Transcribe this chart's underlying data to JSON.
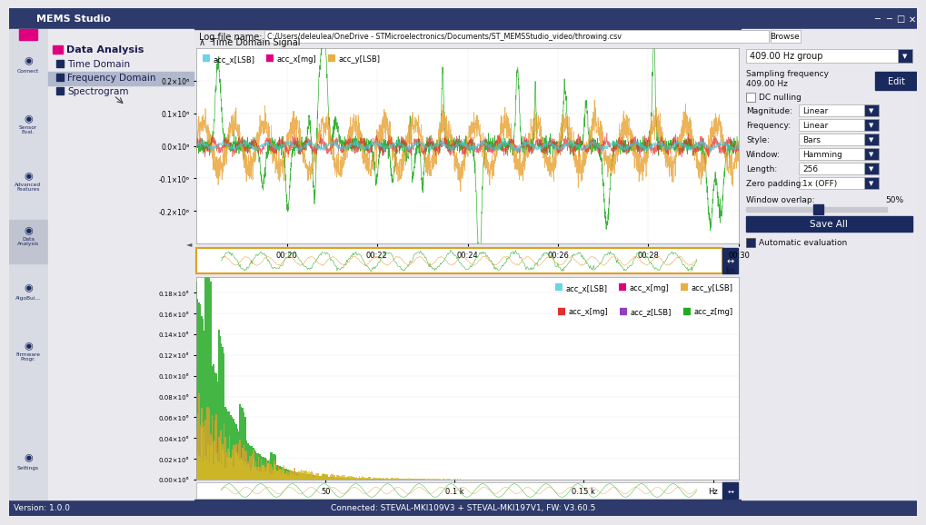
{
  "bg_color": "#e8e8ec",
  "dark_blue": "#1a2a5e",
  "accent_pink": "#e0007f",
  "log_file": "C:/Users/deleulea/OneDrive - STMicroelectronics/Documents/ST_MEMSStudio_video/throwing.csv",
  "hz_group": "409.00 Hz group",
  "version": "Version: 1.0.0",
  "status_bar": "Connected: STEVAL-MKI109V3 + STEVAL-MKI197V1, FW: V3.60.5",
  "menu_items": [
    "Time Domain",
    "Frequency Domain",
    "Spectrogram"
  ],
  "selected_menu": 1,
  "legend_items": [
    "acc_x[LSB]",
    "acc_x[mg]",
    "acc_y[LSB]"
  ],
  "legend_colors": [
    "#6ad4e8",
    "#e0007f",
    "#e8b040"
  ],
  "time_ticks": [
    "00:20",
    "00:22",
    "00:24",
    "00:26",
    "00:28",
    "00:30"
  ],
  "signal_colors": [
    "#22aa22",
    "#e8a030",
    "#e03030",
    "#40c8d8"
  ],
  "bar_colors": [
    "#22aa22",
    "#e8a030",
    "#d4c020"
  ]
}
